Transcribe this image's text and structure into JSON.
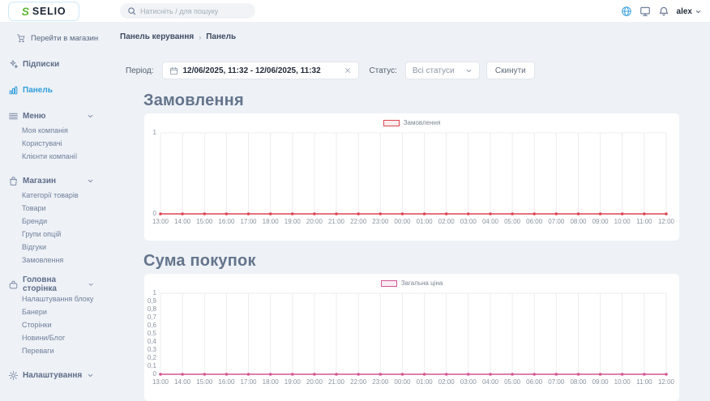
{
  "topbar": {
    "logo_text": "SELIO",
    "search_placeholder": "Натисніть / для пошуку",
    "user_name": "alex"
  },
  "breadcrumb": {
    "items": [
      "Панель керування",
      "Панель"
    ],
    "separator": "›"
  },
  "sidebar": {
    "store_link": "Перейти в магазин",
    "items": [
      {
        "name": "subscriptions",
        "label": "Підписки",
        "icon": "sparkles-icon",
        "expandable": false,
        "active": false,
        "children": []
      },
      {
        "name": "dashboard",
        "label": "Панель",
        "icon": "bar-chart-icon",
        "expandable": false,
        "active": true,
        "children": []
      },
      {
        "name": "menu",
        "label": "Меню",
        "icon": "menu-icon",
        "expandable": true,
        "active": false,
        "children": [
          "Моя компанія",
          "Користувачі",
          "Клієнти компанії"
        ]
      },
      {
        "name": "store",
        "label": "Магазин",
        "icon": "shopping-bag-icon",
        "expandable": true,
        "active": false,
        "children": [
          "Категорії товарів",
          "Товари",
          "Бренди",
          "Групи опцій",
          "Відгуки",
          "Замовлення"
        ]
      },
      {
        "name": "homepage",
        "label": "Головна сторінка",
        "icon": "handbag-icon",
        "expandable": true,
        "active": false,
        "children": [
          "Налаштування блоку",
          "Банери",
          "Сторінки",
          "Новини/Блог",
          "Переваги"
        ]
      },
      {
        "name": "settings",
        "label": "Налаштування",
        "icon": "gear-icon",
        "expandable": true,
        "active": false,
        "children": []
      }
    ]
  },
  "filters": {
    "period_label": "Період:",
    "period_value": "12/06/2025, 11:32 - 12/06/2025, 11:32",
    "status_label": "Статус:",
    "status_value": "Всі статуси",
    "reset_label": "Скинути"
  },
  "chart_data": [
    {
      "type": "line",
      "title": "Замовлення",
      "legend": "Замовлення",
      "color": "#dc4553",
      "x": [
        "13:00",
        "14:00",
        "15:00",
        "16:00",
        "17:00",
        "18:00",
        "19:00",
        "20:00",
        "21:00",
        "22:00",
        "23:00",
        "00:00",
        "01:00",
        "02:00",
        "03:00",
        "04:00",
        "05:00",
        "06:00",
        "07:00",
        "08:00",
        "09:00",
        "10:00",
        "11:00",
        "12:00"
      ],
      "values": [
        0,
        0,
        0,
        0,
        0,
        0,
        0,
        0,
        0,
        0,
        0,
        0,
        0,
        0,
        0,
        0,
        0,
        0,
        0,
        0,
        0,
        0,
        0,
        0
      ],
      "y_ticks": [
        "1",
        "0"
      ],
      "ylim": [
        0,
        1
      ],
      "grid": "vertical",
      "legend_position": "top-center"
    },
    {
      "type": "line",
      "title": "Сума покупок",
      "legend": "Загальна ціна",
      "color": "#d25792",
      "x": [
        "13:00",
        "14:00",
        "15:00",
        "16:00",
        "17:00",
        "18:00",
        "19:00",
        "20:00",
        "21:00",
        "22:00",
        "23:00",
        "00:00",
        "01:00",
        "02:00",
        "03:00",
        "04:00",
        "05:00",
        "06:00",
        "07:00",
        "08:00",
        "09:00",
        "10:00",
        "11:00",
        "12:00"
      ],
      "values": [
        0,
        0,
        0,
        0,
        0,
        0,
        0,
        0,
        0,
        0,
        0,
        0,
        0,
        0,
        0,
        0,
        0,
        0,
        0,
        0,
        0,
        0,
        0,
        0
      ],
      "y_ticks": [
        "1",
        "0,9",
        "0,8",
        "0,7",
        "0,6",
        "0,5",
        "0,4",
        "0,3",
        "0,2",
        "0,1",
        "0"
      ],
      "ylim": [
        0,
        1
      ],
      "grid": "vertical",
      "legend_position": "top-center"
    }
  ]
}
